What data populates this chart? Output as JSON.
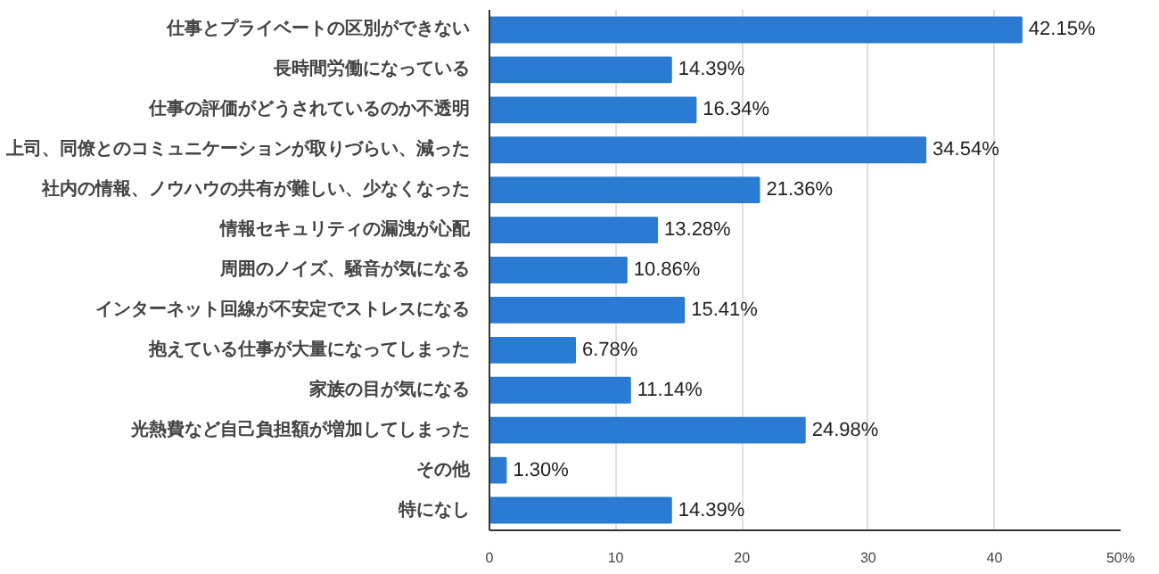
{
  "chart_data": {
    "type": "bar",
    "orientation": "horizontal",
    "categories": [
      "仕事とプライベートの区別ができない",
      "長時間労働になっている",
      "仕事の評価がどうされているのか不透明",
      "上司、同僚とのコミュニケーションが取りづらい、減った",
      "社内の情報、ノウハウの共有が難しい、少なくなった",
      "情報セキュリティの漏洩が心配",
      "周囲のノイズ、騒音が気になる",
      "インターネット回線が不安定でストレスになる",
      "抱えている仕事が大量になってしまった",
      "家族の目が気になる",
      "光熱費など自己負担額が増加してしまった",
      "その他",
      "特になし"
    ],
    "values": [
      42.15,
      14.39,
      16.34,
      34.54,
      21.36,
      13.28,
      10.86,
      15.41,
      6.78,
      11.14,
      24.98,
      1.3,
      14.39
    ],
    "value_labels": [
      "42.15%",
      "14.39%",
      "16.34%",
      "34.54%",
      "21.36%",
      "13.28%",
      "10.86%",
      "15.41%",
      "6.78%",
      "11.14%",
      "24.98%",
      "1.30%",
      "14.39%"
    ],
    "color": "#2a7bd1",
    "xlim": [
      0,
      50
    ],
    "xticks": [
      0,
      10,
      20,
      30,
      40,
      {
        "value": 50,
        "label": "50%"
      }
    ],
    "grid": "x"
  }
}
